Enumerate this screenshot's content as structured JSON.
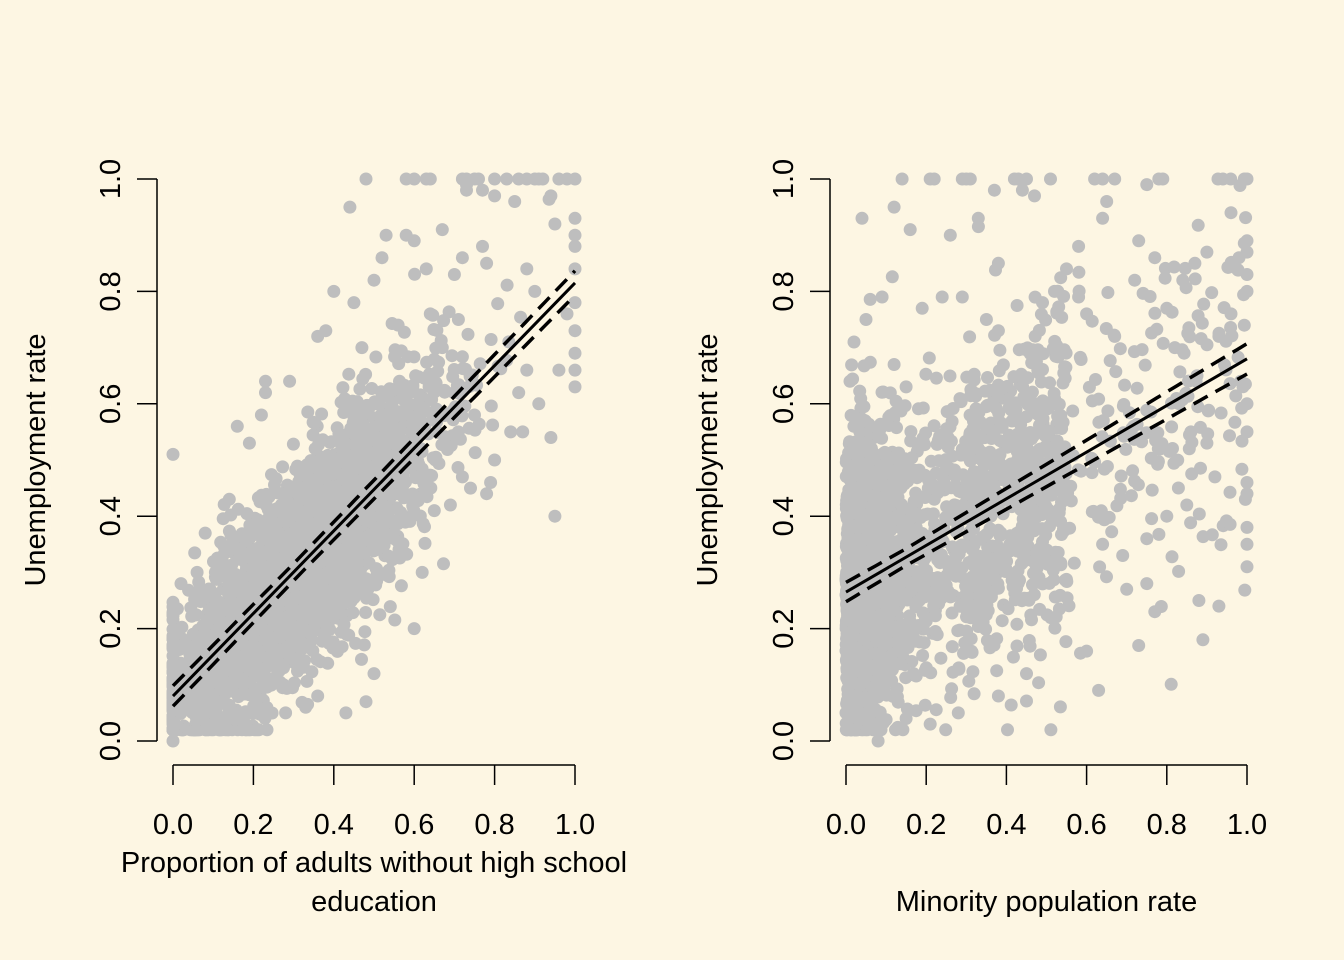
{
  "chart_data": [
    {
      "type": "scatter",
      "title": "",
      "xlabel_lines": [
        "Proportion of adults without high school",
        "education"
      ],
      "ylabel": "Unemployment rate",
      "xlim": [
        0,
        1
      ],
      "ylim": [
        0,
        1
      ],
      "xticks": [
        "0.0",
        "0.2",
        "0.4",
        "0.6",
        "0.8",
        "1.0"
      ],
      "yticks": [
        "0.0",
        "0.2",
        "0.4",
        "0.6",
        "0.8",
        "1.0"
      ],
      "point_color": "#bebebe",
      "line_color": "#000000",
      "fit": {
        "intercept": 0.08,
        "slope": 0.735,
        "ci_intercept_halfwidth": 0.015,
        "ci_end_halfwidth": 0.022
      },
      "points_approx": {
        "count": 2800,
        "x_mean": 0.32,
        "x_sd": 0.17,
        "residual_sd": 0.09
      },
      "points": [
        {
          "x": 0.0,
          "y": 0.51
        },
        {
          "x": 0.0,
          "y": 0.0
        },
        {
          "x": 0.02,
          "y": 0.28
        },
        {
          "x": 0.95,
          "y": 0.4
        },
        {
          "x": 0.48,
          "y": 1.0
        },
        {
          "x": 0.58,
          "y": 1.0
        },
        {
          "x": 0.6,
          "y": 1.0
        },
        {
          "x": 0.63,
          "y": 1.0
        },
        {
          "x": 0.64,
          "y": 1.0
        },
        {
          "x": 0.72,
          "y": 1.0
        },
        {
          "x": 0.73,
          "y": 1.0
        },
        {
          "x": 0.73,
          "y": 0.99
        },
        {
          "x": 0.73,
          "y": 0.98
        },
        {
          "x": 0.75,
          "y": 1.0
        },
        {
          "x": 0.76,
          "y": 1.0
        },
        {
          "x": 0.8,
          "y": 1.0
        },
        {
          "x": 0.83,
          "y": 1.0
        },
        {
          "x": 0.86,
          "y": 1.0
        },
        {
          "x": 0.88,
          "y": 1.0
        },
        {
          "x": 0.9,
          "y": 1.0
        },
        {
          "x": 0.91,
          "y": 1.0
        },
        {
          "x": 0.92,
          "y": 1.0
        },
        {
          "x": 0.96,
          "y": 1.0
        },
        {
          "x": 0.98,
          "y": 1.0
        },
        {
          "x": 1.0,
          "y": 1.0
        },
        {
          "x": 0.44,
          "y": 0.95
        },
        {
          "x": 0.94,
          "y": 0.97
        },
        {
          "x": 0.8,
          "y": 0.97
        },
        {
          "x": 0.77,
          "y": 0.98
        },
        {
          "x": 0.85,
          "y": 0.96
        },
        {
          "x": 0.95,
          "y": 0.92
        },
        {
          "x": 1.0,
          "y": 0.93
        },
        {
          "x": 1.0,
          "y": 0.9
        },
        {
          "x": 1.0,
          "y": 0.88
        },
        {
          "x": 0.53,
          "y": 0.9
        },
        {
          "x": 0.58,
          "y": 0.9
        },
        {
          "x": 0.6,
          "y": 0.89
        },
        {
          "x": 0.67,
          "y": 0.91
        },
        {
          "x": 0.72,
          "y": 0.86
        },
        {
          "x": 0.77,
          "y": 0.88
        },
        {
          "x": 0.78,
          "y": 0.85
        },
        {
          "x": 0.7,
          "y": 0.83
        },
        {
          "x": 0.63,
          "y": 0.84
        },
        {
          "x": 0.88,
          "y": 0.84
        },
        {
          "x": 0.9,
          "y": 0.8
        },
        {
          "x": 1.0,
          "y": 0.84
        },
        {
          "x": 1.0,
          "y": 0.78
        },
        {
          "x": 0.98,
          "y": 0.76
        },
        {
          "x": 1.0,
          "y": 0.73
        },
        {
          "x": 1.0,
          "y": 0.69
        },
        {
          "x": 1.0,
          "y": 0.66
        },
        {
          "x": 1.0,
          "y": 0.63
        },
        {
          "x": 0.96,
          "y": 0.66
        },
        {
          "x": 0.88,
          "y": 0.66
        },
        {
          "x": 0.86,
          "y": 0.62
        },
        {
          "x": 0.91,
          "y": 0.6
        },
        {
          "x": 0.87,
          "y": 0.55
        },
        {
          "x": 0.94,
          "y": 0.54
        },
        {
          "x": 0.84,
          "y": 0.55
        },
        {
          "x": 0.8,
          "y": 0.5
        },
        {
          "x": 0.79,
          "y": 0.46
        },
        {
          "x": 0.78,
          "y": 0.44
        },
        {
          "x": 0.72,
          "y": 0.47
        },
        {
          "x": 0.74,
          "y": 0.45
        },
        {
          "x": 0.69,
          "y": 0.42
        },
        {
          "x": 0.65,
          "y": 0.41
        },
        {
          "x": 0.62,
          "y": 0.3
        },
        {
          "x": 0.6,
          "y": 0.2
        },
        {
          "x": 0.5,
          "y": 0.12
        },
        {
          "x": 0.48,
          "y": 0.07
        },
        {
          "x": 0.43,
          "y": 0.05
        },
        {
          "x": 0.36,
          "y": 0.08
        },
        {
          "x": 0.4,
          "y": 0.8
        },
        {
          "x": 0.45,
          "y": 0.78
        },
        {
          "x": 0.5,
          "y": 0.82
        },
        {
          "x": 0.52,
          "y": 0.86
        },
        {
          "x": 0.38,
          "y": 0.73
        },
        {
          "x": 0.36,
          "y": 0.72
        },
        {
          "x": 0.29,
          "y": 0.64
        },
        {
          "x": 0.23,
          "y": 0.64
        },
        {
          "x": 0.23,
          "y": 0.62
        },
        {
          "x": 0.22,
          "y": 0.58
        },
        {
          "x": 0.16,
          "y": 0.56
        },
        {
          "x": 0.19,
          "y": 0.53
        },
        {
          "x": 0.14,
          "y": 0.43
        },
        {
          "x": 0.08,
          "y": 0.37
        },
        {
          "x": 0.06,
          "y": 0.3
        },
        {
          "x": 0.05,
          "y": 0.19
        },
        {
          "x": 0.01,
          "y": 0.11
        },
        {
          "x": 0.02,
          "y": 0.05
        },
        {
          "x": 0.1,
          "y": 0.06
        },
        {
          "x": 0.14,
          "y": 0.04
        },
        {
          "x": 0.22,
          "y": 0.05
        },
        {
          "x": 0.28,
          "y": 0.05
        },
        {
          "x": 0.33,
          "y": 0.06
        },
        {
          "x": 0.71,
          "y": 0.55
        },
        {
          "x": 0.75,
          "y": 0.58
        },
        {
          "x": 0.67,
          "y": 0.7
        },
        {
          "x": 0.71,
          "y": 0.75
        },
        {
          "x": 0.64,
          "y": 0.76
        },
        {
          "x": 0.56,
          "y": 0.74
        },
        {
          "x": 0.47,
          "y": 0.7
        },
        {
          "x": 0.55,
          "y": 0.36
        },
        {
          "x": 0.57,
          "y": 0.4
        }
      ]
    },
    {
      "type": "scatter",
      "title": "",
      "xlabel_lines": [
        "",
        "Minority population rate"
      ],
      "ylabel": "Unemployment rate",
      "xlim": [
        0,
        1
      ],
      "ylim": [
        0,
        1
      ],
      "xticks": [
        "0.0",
        "0.2",
        "0.4",
        "0.6",
        "0.8",
        "1.0"
      ],
      "yticks": [
        "0.0",
        "0.2",
        "0.4",
        "0.6",
        "0.8",
        "1.0"
      ],
      "point_color": "#bebebe",
      "line_color": "#000000",
      "fit": {
        "intercept": 0.265,
        "slope": 0.415,
        "ci_intercept_halfwidth": 0.015,
        "ci_end_halfwidth": 0.025
      },
      "points_approx": {
        "count": 2800,
        "x_mean": 0.15,
        "x_sd": 0.2,
        "residual_sd": 0.14
      },
      "points": [
        {
          "x": 0.0,
          "y": 0.26
        },
        {
          "x": 0.08,
          "y": 0.0
        },
        {
          "x": 0.63,
          "y": 0.09
        },
        {
          "x": 0.14,
          "y": 1.0
        },
        {
          "x": 0.21,
          "y": 1.0
        },
        {
          "x": 0.22,
          "y": 1.0
        },
        {
          "x": 0.29,
          "y": 1.0
        },
        {
          "x": 0.3,
          "y": 1.0
        },
        {
          "x": 0.31,
          "y": 1.0
        },
        {
          "x": 0.42,
          "y": 1.0
        },
        {
          "x": 0.43,
          "y": 1.0
        },
        {
          "x": 0.45,
          "y": 1.0
        },
        {
          "x": 0.51,
          "y": 1.0
        },
        {
          "x": 0.62,
          "y": 1.0
        },
        {
          "x": 0.64,
          "y": 1.0
        },
        {
          "x": 0.67,
          "y": 1.0
        },
        {
          "x": 0.78,
          "y": 1.0
        },
        {
          "x": 0.79,
          "y": 1.0
        },
        {
          "x": 0.94,
          "y": 1.0
        },
        {
          "x": 1.0,
          "y": 1.0
        },
        {
          "x": 0.12,
          "y": 0.95
        },
        {
          "x": 0.04,
          "y": 0.93
        },
        {
          "x": 0.16,
          "y": 0.91
        },
        {
          "x": 0.37,
          "y": 0.98
        },
        {
          "x": 0.33,
          "y": 0.93
        },
        {
          "x": 0.26,
          "y": 0.9
        },
        {
          "x": 0.44,
          "y": 0.98
        },
        {
          "x": 0.47,
          "y": 0.97
        },
        {
          "x": 0.64,
          "y": 0.93
        },
        {
          "x": 0.65,
          "y": 0.96
        },
        {
          "x": 0.75,
          "y": 0.99
        },
        {
          "x": 0.96,
          "y": 0.94
        },
        {
          "x": 0.98,
          "y": 0.86
        },
        {
          "x": 1.0,
          "y": 0.89
        },
        {
          "x": 1.0,
          "y": 0.87
        },
        {
          "x": 1.0,
          "y": 0.83
        },
        {
          "x": 1.0,
          "y": 0.8
        },
        {
          "x": 1.0,
          "y": 0.6
        },
        {
          "x": 1.0,
          "y": 0.55
        },
        {
          "x": 1.0,
          "y": 0.46
        },
        {
          "x": 1.0,
          "y": 0.44
        },
        {
          "x": 1.0,
          "y": 0.38
        },
        {
          "x": 1.0,
          "y": 0.35
        },
        {
          "x": 1.0,
          "y": 0.31
        },
        {
          "x": 0.89,
          "y": 0.18
        },
        {
          "x": 0.93,
          "y": 0.24
        },
        {
          "x": 0.88,
          "y": 0.25
        },
        {
          "x": 0.92,
          "y": 0.47
        },
        {
          "x": 0.73,
          "y": 0.17
        },
        {
          "x": 0.77,
          "y": 0.23
        },
        {
          "x": 0.7,
          "y": 0.27
        },
        {
          "x": 0.6,
          "y": 0.16
        },
        {
          "x": 0.45,
          "y": 0.12
        },
        {
          "x": 0.38,
          "y": 0.08
        },
        {
          "x": 0.28,
          "y": 0.05
        },
        {
          "x": 0.21,
          "y": 0.03
        },
        {
          "x": 0.15,
          "y": 0.04
        },
        {
          "x": 0.35,
          "y": 0.75
        },
        {
          "x": 0.38,
          "y": 0.73
        },
        {
          "x": 0.29,
          "y": 0.79
        },
        {
          "x": 0.24,
          "y": 0.79
        },
        {
          "x": 0.19,
          "y": 0.77
        },
        {
          "x": 0.38,
          "y": 0.85
        },
        {
          "x": 0.55,
          "y": 0.84
        },
        {
          "x": 0.58,
          "y": 0.88
        },
        {
          "x": 0.72,
          "y": 0.82
        },
        {
          "x": 0.77,
          "y": 0.86
        },
        {
          "x": 0.73,
          "y": 0.89
        },
        {
          "x": 0.87,
          "y": 0.85
        },
        {
          "x": 0.84,
          "y": 0.82
        },
        {
          "x": 0.9,
          "y": 0.87
        },
        {
          "x": 0.96,
          "y": 0.76
        },
        {
          "x": 0.93,
          "y": 0.72
        },
        {
          "x": 0.8,
          "y": 0.77
        },
        {
          "x": 0.82,
          "y": 0.7
        },
        {
          "x": 0.67,
          "y": 0.72
        },
        {
          "x": 0.58,
          "y": 0.79
        },
        {
          "x": 0.52,
          "y": 0.8
        },
        {
          "x": 0.49,
          "y": 0.78
        },
        {
          "x": 0.6,
          "y": 0.76
        },
        {
          "x": 0.85,
          "y": 0.42
        },
        {
          "x": 0.8,
          "y": 0.4
        },
        {
          "x": 0.75,
          "y": 0.36
        },
        {
          "x": 0.86,
          "y": 0.55
        },
        {
          "x": 0.9,
          "y": 0.53
        },
        {
          "x": 0.69,
          "y": 0.33
        },
        {
          "x": 0.75,
          "y": 0.28
        },
        {
          "x": 0.64,
          "y": 0.35
        },
        {
          "x": 0.02,
          "y": 0.71
        },
        {
          "x": 0.05,
          "y": 0.75
        },
        {
          "x": 0.09,
          "y": 0.79
        },
        {
          "x": 0.01,
          "y": 0.64
        },
        {
          "x": 0.12,
          "y": 0.67
        },
        {
          "x": 0.15,
          "y": 0.63
        },
        {
          "x": 0.0,
          "y": 0.05
        },
        {
          "x": 0.05,
          "y": 0.04
        }
      ]
    }
  ]
}
